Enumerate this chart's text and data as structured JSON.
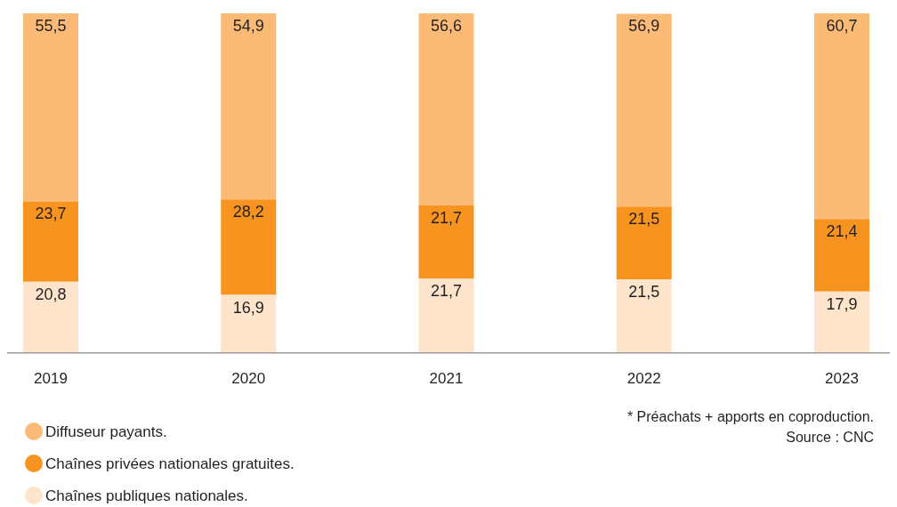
{
  "chart_data": {
    "type": "bar",
    "stacked": true,
    "categories": [
      "2019",
      "2020",
      "2021",
      "2022",
      "2023"
    ],
    "series": [
      {
        "name": "Chaînes publiques nationales.",
        "color": "#fde4ca",
        "values": [
          20.8,
          16.9,
          21.7,
          21.5,
          17.9
        ],
        "value_labels": [
          "20,8",
          "16,9",
          "21,7",
          "21,5",
          "17,9"
        ]
      },
      {
        "name": "Chaînes privées nationales gratuites.",
        "color": "#f7941f",
        "values": [
          23.7,
          28.2,
          21.7,
          21.5,
          21.4
        ],
        "value_labels": [
          "23,7",
          "28,2",
          "21,7",
          "21,5",
          "21,4"
        ]
      },
      {
        "name": "Diffuseur payants.",
        "color": "#fbbb76",
        "values": [
          55.5,
          54.9,
          56.6,
          56.9,
          60.7
        ],
        "value_labels": [
          "55,5",
          "54,9",
          "56,6",
          "56,9",
          "60,7"
        ]
      }
    ],
    "tick_labels": "x",
    "legend": "bottom left",
    "annotations": [
      "* Préachats + apports en coproduction.",
      "Source : CNC"
    ]
  }
}
